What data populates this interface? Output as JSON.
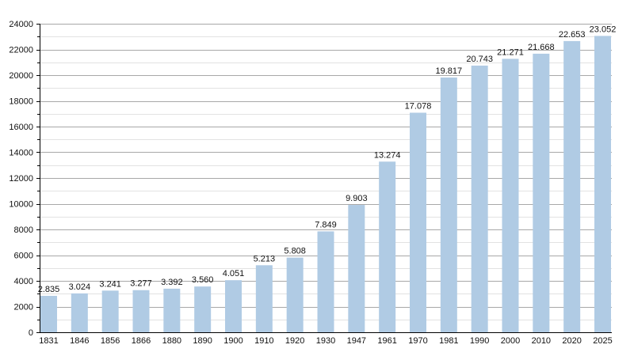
{
  "chart_data": {
    "type": "bar",
    "title": "",
    "xlabel": "",
    "ylabel": "",
    "ylim": [
      0,
      24000
    ],
    "y_major_step": 2000,
    "y_minor_step": 1000,
    "grid": true,
    "legend": "none",
    "bar_color": "#b0cbe4",
    "categories": [
      "1831",
      "1846",
      "1856",
      "1866",
      "1880",
      "1890",
      "1900",
      "1910",
      "1920",
      "1930",
      "1947",
      "1961",
      "1970",
      "1981",
      "1990",
      "2000",
      "2010",
      "2020",
      "2025"
    ],
    "values": [
      2835,
      3024,
      3241,
      3277,
      3392,
      3560,
      4051,
      5213,
      5808,
      7849,
      9903,
      13274,
      17078,
      19817,
      20743,
      21271,
      21668,
      22653,
      23052
    ],
    "data_labels": [
      "2.835",
      "3.024",
      "3.241",
      "3.277",
      "3.392",
      "3.560",
      "4.051",
      "5.213",
      "5.808",
      "7.849",
      "9.903",
      "13.274",
      "17.078",
      "19.817",
      "20.743",
      "21.271",
      "21.668",
      "22.653",
      "23.052"
    ],
    "y_tick_labels": [
      "0",
      "2000",
      "4000",
      "6000",
      "8000",
      "10000",
      "12000",
      "14000",
      "16000",
      "18000",
      "20000",
      "22000",
      "24000"
    ]
  }
}
